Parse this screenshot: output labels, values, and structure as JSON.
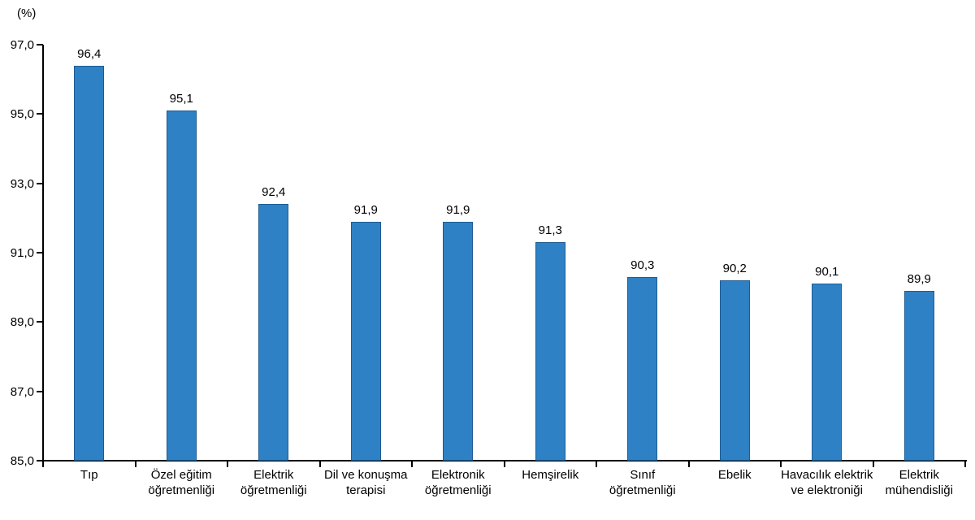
{
  "chart_data": {
    "type": "bar",
    "title": "",
    "xlabel": "",
    "ylabel": "(%)",
    "unit_label": "(%)",
    "grid": false,
    "legend": "none",
    "ylim": [
      85.0,
      97.0
    ],
    "yticks": [
      85.0,
      87.0,
      89.0,
      91.0,
      93.0,
      95.0,
      97.0
    ],
    "ytick_labels": [
      "85,0",
      "87,0",
      "89,0",
      "91,0",
      "93,0",
      "95,0",
      "97,0"
    ],
    "categories": [
      "Tıp",
      "Özel eğitim öğretmenliği",
      "Elektrik öğretmenliği",
      "Dil ve konuşma terapisi",
      "Elektronik öğretmenliği",
      "Hemşirelik",
      "Sınıf öğretmenliği",
      "Ebelik",
      "Havacılık elektrik ve elektroniği",
      "Elektrik mühendisliği"
    ],
    "values": [
      96.4,
      95.1,
      92.4,
      91.9,
      91.9,
      91.3,
      90.3,
      90.2,
      90.1,
      89.9
    ],
    "value_labels": [
      "96,4",
      "95,1",
      "92,4",
      "91,9",
      "91,9",
      "91,3",
      "90,3",
      "90,2",
      "90,1",
      "89,9"
    ],
    "bar_color": "#2E81C4",
    "bar_border_color": "#1E5C94",
    "axis_color": "#000000"
  }
}
